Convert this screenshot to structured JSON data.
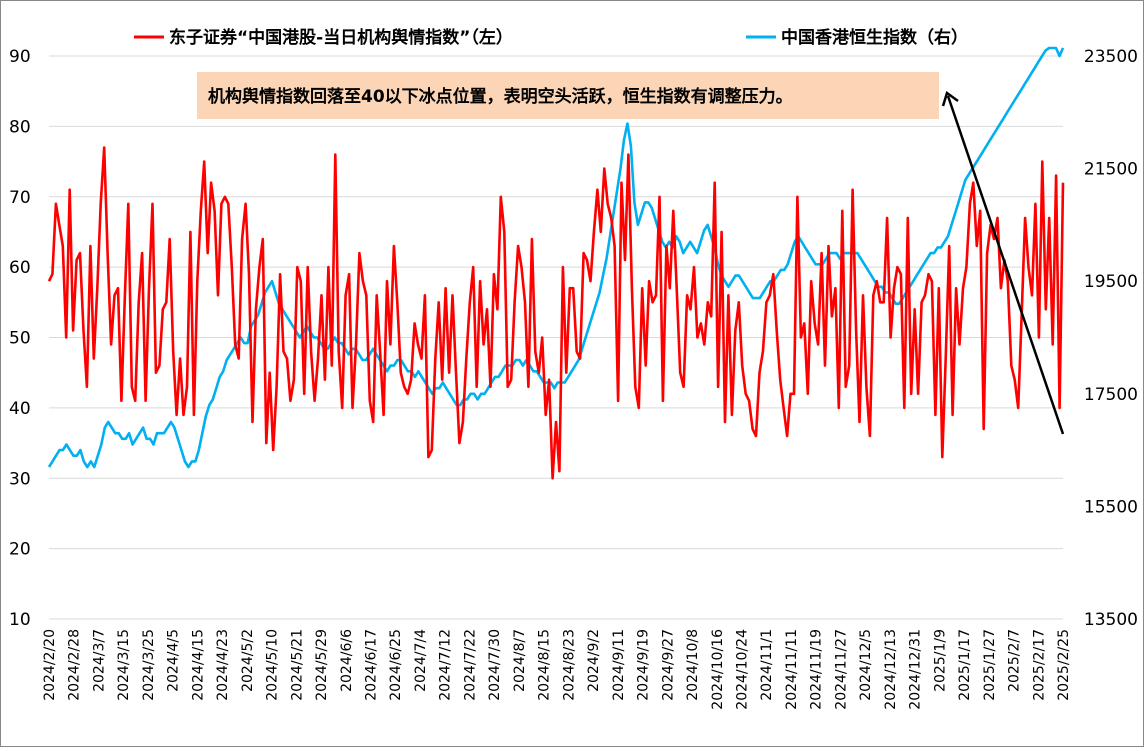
{
  "chart_data": {
    "type": "line",
    "title": "",
    "series": [
      {
        "name": "东子证券“中国港股-当日机构舆情指数”（左）",
        "axis": "left",
        "color": "#ff0000",
        "values": [
          58,
          59,
          69,
          66,
          63,
          50,
          71,
          51,
          61,
          62,
          51,
          43,
          63,
          47,
          57,
          69,
          77,
          62,
          49,
          56,
          57,
          41,
          56,
          69,
          43,
          41,
          55,
          62,
          41,
          57,
          69,
          45,
          46,
          54,
          55,
          64,
          48,
          39,
          47,
          39,
          43,
          65,
          39,
          58,
          68,
          75,
          62,
          72,
          68,
          56,
          69,
          70,
          69,
          60,
          49,
          47,
          64,
          69,
          59,
          38,
          54,
          60,
          64,
          35,
          45,
          34,
          43,
          59,
          48,
          47,
          41,
          44,
          60,
          58,
          42,
          60,
          48,
          41,
          47,
          56,
          44,
          60,
          46,
          76,
          48,
          40,
          56,
          59,
          40,
          49,
          62,
          58,
          56,
          41,
          38,
          56,
          48,
          39,
          58,
          49,
          63,
          55,
          45,
          43,
          42,
          44,
          52,
          49,
          47,
          56,
          33,
          34,
          47,
          55,
          44,
          57,
          45,
          56,
          45,
          35,
          38,
          47,
          55,
          60,
          43,
          58,
          49,
          54,
          43,
          59,
          54,
          70,
          65,
          43,
          44,
          55,
          63,
          60,
          55,
          43,
          64,
          48,
          45,
          50,
          39,
          44,
          30,
          38,
          31,
          60,
          45,
          57,
          57,
          48,
          47,
          62,
          61,
          58,
          65,
          71,
          65,
          74,
          69,
          67,
          63,
          41,
          72,
          61,
          76,
          57,
          43,
          40,
          57,
          46,
          58,
          55,
          56,
          70,
          41,
          63,
          57,
          68,
          57,
          45,
          43,
          56,
          54,
          60,
          50,
          52,
          49,
          55,
          53,
          72,
          43,
          65,
          38,
          56,
          39,
          51,
          55,
          46,
          42,
          41,
          37,
          36,
          45,
          48,
          55,
          56,
          59,
          51,
          44,
          40,
          36,
          42,
          42,
          70,
          50,
          52,
          42,
          58,
          52,
          49,
          62,
          46,
          63,
          53,
          57,
          40,
          68,
          43,
          46,
          71,
          51,
          38,
          56,
          43,
          36,
          56,
          58,
          55,
          55,
          67,
          50,
          57,
          60,
          59,
          40,
          67,
          42,
          54,
          42,
          55,
          56,
          59,
          58,
          39,
          57,
          33,
          47,
          63,
          39,
          57,
          49,
          57,
          60,
          69,
          72,
          63,
          68,
          37,
          62,
          66,
          64,
          67,
          57,
          61,
          58,
          46,
          44,
          40,
          53,
          67,
          60,
          56,
          69,
          50,
          75,
          54,
          67,
          49,
          73,
          40,
          72
        ],
        "ylim": [
          10,
          90
        ],
        "yticks": [
          10,
          20,
          30,
          40,
          50,
          60,
          70,
          80,
          90
        ]
      },
      {
        "name": "中国香港恒生指数（右）",
        "axis": "right",
        "color": "#00b0f0",
        "values": [
          16200,
          16300,
          16400,
          16500,
          16500,
          16600,
          16500,
          16400,
          16400,
          16500,
          16300,
          16200,
          16300,
          16200,
          16400,
          16600,
          16900,
          17000,
          16900,
          16800,
          16800,
          16700,
          16700,
          16800,
          16600,
          16700,
          16800,
          16900,
          16700,
          16700,
          16600,
          16800,
          16800,
          16800,
          16900,
          17000,
          16900,
          16700,
          16500,
          16300,
          16200,
          16300,
          16300,
          16500,
          16800,
          17100,
          17300,
          17400,
          17600,
          17800,
          17900,
          18100,
          18200,
          18300,
          18400,
          18500,
          18400,
          18400,
          18700,
          18800,
          18900,
          19100,
          19300,
          19400,
          19500,
          19300,
          19100,
          19000,
          18900,
          18800,
          18700,
          18600,
          18500,
          18600,
          18700,
          18600,
          18500,
          18500,
          18400,
          18300,
          18300,
          18400,
          18500,
          18400,
          18400,
          18300,
          18200,
          18300,
          18300,
          18200,
          18100,
          18100,
          18200,
          18300,
          18200,
          18100,
          18000,
          17900,
          18000,
          18000,
          18100,
          18100,
          18000,
          17900,
          17900,
          17800,
          17900,
          17800,
          17700,
          17600,
          17500,
          17600,
          17600,
          17700,
          17600,
          17500,
          17400,
          17300,
          17300,
          17400,
          17400,
          17500,
          17500,
          17400,
          17500,
          17500,
          17600,
          17700,
          17800,
          17800,
          17900,
          18000,
          18000,
          18000,
          18100,
          18100,
          18000,
          18100,
          18000,
          17900,
          17900,
          17800,
          17700,
          17700,
          17700,
          17600,
          17700,
          17700,
          17700,
          17800,
          17900,
          18000,
          18100,
          18300,
          18500,
          18700,
          18900,
          19100,
          19300,
          19600,
          19900,
          20300,
          20700,
          21100,
          21500,
          22000,
          22300,
          21900,
          20900,
          20500,
          20700,
          20900,
          20900,
          20800,
          20600,
          20400,
          20200,
          20100,
          20200,
          20100,
          20300,
          20200,
          20000,
          20100,
          20200,
          20100,
          20000,
          20200,
          20400,
          20500,
          20300,
          20100,
          19800,
          19600,
          19500,
          19400,
          19500,
          19600,
          19600,
          19500,
          19400,
          19300,
          19200,
          19200,
          19200,
          19300,
          19400,
          19500,
          19500,
          19600,
          19700,
          19700,
          19800,
          20000,
          20200,
          20300,
          20200,
          20100,
          20000,
          19900,
          19800,
          19800,
          19800,
          19900,
          20000,
          20000,
          20000,
          19900,
          20000,
          20000,
          20000,
          20000,
          20000,
          19900,
          19800,
          19700,
          19600,
          19500,
          19400,
          19400,
          19300,
          19300,
          19200,
          19100,
          19100,
          19200,
          19300,
          19400,
          19500,
          19600,
          19700,
          19800,
          19900,
          20000,
          20000,
          20100,
          20100,
          20200,
          20300,
          20500,
          20700,
          20900,
          21100,
          21300,
          21400,
          21500,
          21600,
          21700,
          21800,
          21900,
          22000,
          22100,
          22200,
          22300,
          22400,
          22500,
          22600,
          22700,
          22800,
          22900,
          23000,
          23100,
          23200,
          23300,
          23400,
          23500,
          23600,
          23700,
          23800,
          23900,
          23500,
          23700
        ],
        "ylim": [
          13500,
          23500
        ],
        "yticks": [
          13500,
          15500,
          17500,
          19500,
          21500,
          23500
        ]
      }
    ],
    "x_labels": [
      "2024/2/20",
      "2024/2/28",
      "2024/3/7",
      "2024/3/15",
      "2024/3/25",
      "2024/4/5",
      "2024/4/15",
      "2024/4/23",
      "2024/5/2",
      "2024/5/10",
      "2024/5/21",
      "2024/5/29",
      "2024/6/6",
      "2024/6/17",
      "2024/6/25",
      "2024/7/4",
      "2024/7/12",
      "2024/7/22",
      "2024/7/30",
      "2024/8/7",
      "2024/8/15",
      "2024/8/23",
      "2024/9/2",
      "2024/9/11",
      "2024/9/19",
      "2024/9/27",
      "2024/10/8",
      "2024/10/16",
      "2024/10/24",
      "2024/11/1",
      "2024/11/11",
      "2024/11/19",
      "2024/11/27",
      "2024/12/5",
      "2024/12/13",
      "2024/12/31",
      "2025/1/9",
      "2025/1/17",
      "2025/1/27",
      "2025/2/7",
      "2025/2/17",
      "2025/2/25"
    ],
    "annotation": "机构舆情指数回落至40以下冰点位置，表明空头活跃，恒生指数有调整压力。",
    "annotation_bg": "#fbd5b5",
    "grid": "horizontal",
    "legend_position": "top"
  }
}
